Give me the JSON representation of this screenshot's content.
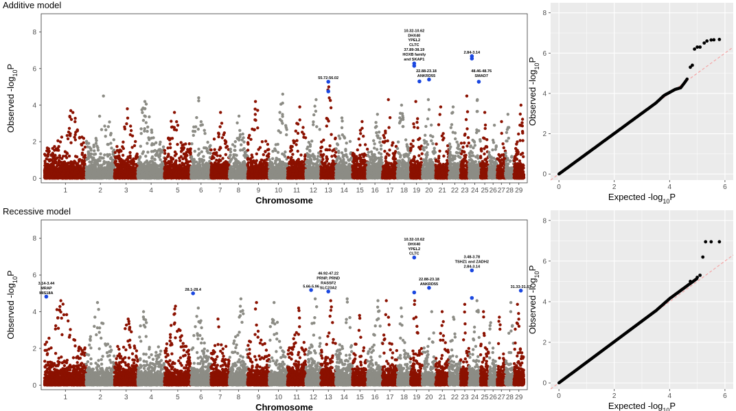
{
  "colors": {
    "odd_chrom": "#8b1100",
    "even_chrom": "#8c8c85",
    "highlight": "#1a47e0",
    "qq_point": "#000000",
    "qq_line": "#f4a3a3",
    "qq_background": "#ebebeb",
    "grid": "#ffffff"
  },
  "chart_data": [
    {
      "type": "scatter",
      "subtype": "manhattan",
      "title": "Additive model",
      "xlabel": "Chromosome",
      "ylabel": "Observed -log",
      "ylabel_sub": "10",
      "ylabel_suffix": "P",
      "ylim": [
        -0.25,
        9.0
      ],
      "yticks": [
        0,
        2,
        4,
        6,
        8
      ],
      "chromosomes": [
        "1",
        "2",
        "3",
        "4",
        "5",
        "6",
        "7",
        "8",
        "9",
        "10",
        "11",
        "12",
        "13",
        "14",
        "15",
        "16",
        "17",
        "18",
        "19",
        "20",
        "21",
        "22",
        "23",
        "24",
        "25",
        "26",
        "27",
        "28",
        "29"
      ],
      "chrom_widths": [
        2.5,
        1.7,
        1.4,
        1.6,
        1.6,
        1.2,
        1.1,
        1.1,
        1.3,
        1.1,
        1.1,
        0.9,
        0.9,
        1.0,
        0.9,
        0.9,
        0.9,
        0.8,
        0.7,
        0.8,
        0.8,
        0.7,
        0.5,
        0.7,
        0.5,
        0.5,
        0.5,
        0.5,
        0.6
      ],
      "chrom_peaks": [
        3.7,
        4.5,
        3.8,
        4.2,
        3.6,
        4.4,
        3.6,
        3.4,
        4.2,
        4.6,
        3.9,
        4.3,
        5.0,
        3.3,
        3.1,
        3.5,
        4.3,
        4.0,
        4.2,
        4.3,
        3.9,
        3.9,
        4.5,
        4.3,
        3.6,
        2.9,
        3.1,
        3.5,
        4.0
      ],
      "highlights": [
        {
          "chrom": "13",
          "pos": 0.5,
          "y": 5.28
        },
        {
          "chrom": "13",
          "pos": 0.5,
          "y": 4.75
        },
        {
          "chrom": "19",
          "pos": 0.3,
          "y": 6.28
        },
        {
          "chrom": "19",
          "pos": 0.3,
          "y": 6.15
        },
        {
          "chrom": "19",
          "pos": 0.75,
          "y": 5.3
        },
        {
          "chrom": "20",
          "pos": 0.5,
          "y": 5.4
        },
        {
          "chrom": "24",
          "pos": 0.25,
          "y": 6.68
        },
        {
          "chrom": "24",
          "pos": 0.25,
          "y": 6.55
        },
        {
          "chrom": "24",
          "pos": 0.85,
          "y": 5.28
        }
      ],
      "annotations": [
        {
          "chrom": "13",
          "pos": 0.5,
          "y": 5.42,
          "lines": [
            "55.72-56.02"
          ]
        },
        {
          "chrom": "19",
          "pos": 0.3,
          "y": 6.45,
          "lines": [
            "10.32-10.62",
            "DHX40",
            "YPEL2",
            "CLTC",
            "37.89-38.19",
            "HOXB family",
            "and SKAP1"
          ]
        },
        {
          "chrom": "20",
          "pos": 0.3,
          "y": 5.55,
          "lines": [
            "22.88-23.18",
            "ANKRD55"
          ]
        },
        {
          "chrom": "24",
          "pos": 0.25,
          "y": 6.82,
          "lines": [
            "2.84-3.14"
          ]
        },
        {
          "chrom": "25",
          "pos": 0.1,
          "y": 5.55,
          "lines": [
            "48.46-48.76",
            "SMAD7"
          ]
        }
      ]
    },
    {
      "type": "scatter",
      "subtype": "qq",
      "title": "",
      "xlabel": "Expected -log",
      "xlabel_sub": "10",
      "xlabel_suffix": "P",
      "ylabel": "Observed -log",
      "ylabel_sub": "10",
      "ylabel_suffix": "P",
      "xlim": [
        -0.3,
        6.3
      ],
      "ylim": [
        -0.3,
        8.5
      ],
      "xticks": [
        0,
        2,
        4,
        6
      ],
      "yticks": [
        0,
        2,
        4,
        6,
        8
      ],
      "curve": [
        [
          0,
          0
        ],
        [
          3.5,
          3.52
        ],
        [
          3.8,
          3.9
        ],
        [
          4.0,
          4.05
        ],
        [
          4.2,
          4.2
        ],
        [
          4.4,
          4.28
        ],
        [
          4.55,
          4.55
        ],
        [
          4.65,
          4.75
        ]
      ],
      "tail_points": [
        [
          4.75,
          5.3
        ],
        [
          4.82,
          5.4
        ],
        [
          4.9,
          6.2
        ],
        [
          5.0,
          6.3
        ],
        [
          5.1,
          6.3
        ],
        [
          5.25,
          6.5
        ],
        [
          5.35,
          6.6
        ],
        [
          5.5,
          6.65
        ],
        [
          5.6,
          6.66
        ],
        [
          5.8,
          6.68
        ]
      ]
    },
    {
      "type": "scatter",
      "subtype": "manhattan",
      "title": "Recessive model",
      "xlabel": "Chromosome",
      "ylabel": "Observed -log",
      "ylabel_sub": "10",
      "ylabel_suffix": "P",
      "ylim": [
        -0.25,
        9.0
      ],
      "yticks": [
        0,
        2,
        4,
        6,
        8
      ],
      "chromosomes": [
        "1",
        "2",
        "3",
        "4",
        "5",
        "6",
        "7",
        "8",
        "9",
        "10",
        "11",
        "12",
        "13",
        "14",
        "15",
        "16",
        "17",
        "18",
        "19",
        "20",
        "21",
        "22",
        "23",
        "24",
        "25",
        "26",
        "27",
        "28",
        "29"
      ],
      "chrom_widths": [
        2.5,
        1.7,
        1.4,
        1.6,
        1.6,
        1.2,
        1.1,
        1.1,
        1.3,
        1.1,
        1.1,
        0.9,
        0.9,
        1.0,
        0.9,
        0.9,
        0.9,
        0.8,
        0.7,
        0.8,
        0.8,
        0.7,
        0.5,
        0.7,
        0.5,
        0.5,
        0.5,
        0.5,
        0.6
      ],
      "chrom_peaks": [
        4.6,
        4.5,
        3.6,
        4.0,
        4.3,
        4.2,
        3.6,
        4.7,
        4.5,
        4.5,
        4.2,
        4.7,
        4.6,
        4.7,
        3.8,
        4.6,
        4.6,
        4.2,
        4.6,
        4.0,
        4.0,
        3.7,
        4.4,
        4.6,
        4.0,
        3.4,
        3.7,
        4.5,
        4.4
      ],
      "highlights": [
        {
          "chrom": "1",
          "pos": 0.04,
          "y": 4.82
        },
        {
          "chrom": "6",
          "pos": 0.1,
          "y": 5.0
        },
        {
          "chrom": "12",
          "pos": 0.35,
          "y": 5.18
        },
        {
          "chrom": "13",
          "pos": 0.5,
          "y": 5.1
        },
        {
          "chrom": "19",
          "pos": 0.3,
          "y": 6.95
        },
        {
          "chrom": "19",
          "pos": 0.3,
          "y": 5.05
        },
        {
          "chrom": "20",
          "pos": 0.5,
          "y": 5.3
        },
        {
          "chrom": "24",
          "pos": 0.25,
          "y": 6.25
        },
        {
          "chrom": "24",
          "pos": 0.25,
          "y": 4.75
        },
        {
          "chrom": "29",
          "pos": 0.7,
          "y": 5.15
        }
      ],
      "annotations": [
        {
          "chrom": "1",
          "pos": 0.04,
          "y": 4.96,
          "lines": [
            "3.14-3.44",
            "MRAP",
            "MIS18A"
          ]
        },
        {
          "chrom": "6",
          "pos": 0.1,
          "y": 5.14,
          "lines": [
            "28.1-28.4"
          ]
        },
        {
          "chrom": "12",
          "pos": 0.35,
          "y": 5.32,
          "lines": [
            "5.66-5.96"
          ]
        },
        {
          "chrom": "13",
          "pos": 0.5,
          "y": 5.24,
          "lines": [
            "46.92-47.22",
            "PRNP, PRND",
            "RASSF2",
            "SLC23A2"
          ]
        },
        {
          "chrom": "19",
          "pos": 0.3,
          "y": 7.1,
          "lines": [
            "10.32-10.62",
            "DHX40",
            "YPEL2",
            "CLTC"
          ]
        },
        {
          "chrom": "20",
          "pos": 0.5,
          "y": 5.45,
          "lines": [
            "22.88-23.18",
            "ANKRD55"
          ]
        },
        {
          "chrom": "24",
          "pos": 0.25,
          "y": 6.4,
          "lines": [
            "3.48-3.78",
            "TSHZ1 and ZADH2",
            "2.84-3.14"
          ]
        },
        {
          "chrom": "29",
          "pos": 0.7,
          "y": 5.29,
          "lines": [
            "31.33-31.63"
          ]
        }
      ]
    },
    {
      "type": "scatter",
      "subtype": "qq",
      "title": "",
      "xlabel": "Expected -log",
      "xlabel_sub": "10",
      "xlabel_suffix": "P",
      "ylabel": "Observed -log",
      "ylabel_sub": "10",
      "ylabel_suffix": "P",
      "xlim": [
        -0.3,
        6.3
      ],
      "ylim": [
        -0.3,
        8.5
      ],
      "xticks": [
        0,
        2,
        4,
        6
      ],
      "yticks": [
        0,
        2,
        4,
        6,
        8
      ],
      "curve": [
        [
          0,
          0
        ],
        [
          3.5,
          3.55
        ],
        [
          4.0,
          4.15
        ],
        [
          4.4,
          4.55
        ],
        [
          4.7,
          4.85
        ],
        [
          5.0,
          5.15
        ]
      ],
      "tail_points": [
        [
          4.75,
          5.0
        ],
        [
          5.0,
          5.2
        ],
        [
          5.1,
          5.3
        ],
        [
          5.2,
          6.2
        ],
        [
          5.3,
          6.95
        ],
        [
          5.5,
          6.95
        ],
        [
          5.8,
          6.95
        ]
      ]
    }
  ]
}
